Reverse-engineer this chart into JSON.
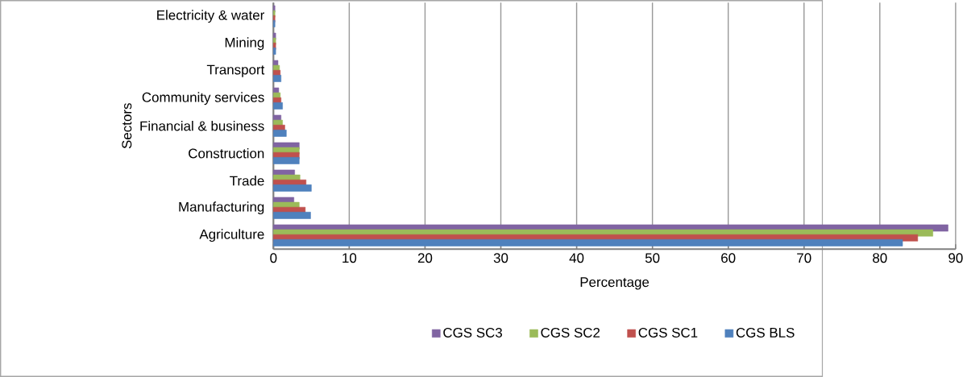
{
  "chart_data": {
    "type": "bar",
    "orientation": "horizontal",
    "xlabel": "Percentage",
    "ylabel": "Sectors",
    "categories": [
      "Electricity & water",
      "Mining",
      "Transport",
      "Community services",
      "Financial & business",
      "Construction",
      "Trade",
      "Manufacturing",
      "Agriculture"
    ],
    "series": [
      {
        "name": "CGS SC3",
        "color": "#8064a2",
        "values": [
          0.2,
          0.3,
          0.6,
          0.7,
          1.0,
          3.4,
          2.8,
          2.7,
          89
        ]
      },
      {
        "name": "CGS SC2",
        "color": "#9bbb59",
        "values": [
          0.2,
          0.3,
          0.8,
          0.9,
          1.2,
          3.4,
          3.5,
          3.4,
          87
        ]
      },
      {
        "name": "CGS SC1",
        "color": "#c0504d",
        "values": [
          0.2,
          0.3,
          0.9,
          1.0,
          1.5,
          3.4,
          4.3,
          4.2,
          85
        ]
      },
      {
        "name": "CGS BLS",
        "color": "#4f81bd",
        "values": [
          0.2,
          0.3,
          1.0,
          1.2,
          1.7,
          3.4,
          5.0,
          4.9,
          83
        ]
      }
    ],
    "xlim": [
      0,
      90
    ],
    "xticks": [
      0,
      10,
      20,
      30,
      40,
      50,
      60,
      70,
      80,
      90
    ],
    "grid": "x",
    "legend": "bottom"
  }
}
